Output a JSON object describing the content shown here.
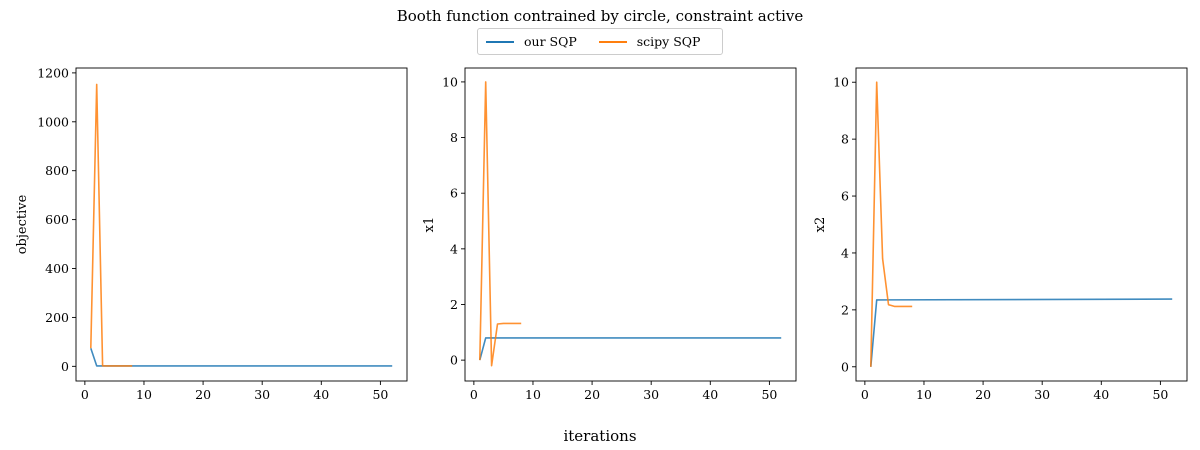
{
  "figure": {
    "title": "Booth function contrained by circle, constraint active",
    "xlabel": "iterations"
  },
  "legend": [
    {
      "name": "our SQP",
      "color": "#1f77b4"
    },
    {
      "name": "scipy SQP",
      "color": "#ff7f0e"
    }
  ],
  "chart_data": [
    {
      "type": "line",
      "title": "",
      "xlabel": "",
      "ylabel": "objective",
      "xlim": [
        -1.5,
        54.5
      ],
      "ylim": [
        -60,
        1220
      ],
      "xticks": [
        0,
        10,
        20,
        30,
        40,
        50
      ],
      "yticks": [
        0,
        200,
        400,
        600,
        800,
        1000,
        1200
      ],
      "grid": false,
      "series": [
        {
          "name": "our SQP",
          "color": "#1f77b4",
          "x": [
            1,
            2,
            52
          ],
          "y": [
            74,
            1.8,
            1.8
          ]
        },
        {
          "name": "scipy SQP",
          "color": "#ff7f0e",
          "x": [
            1,
            2,
            3,
            4,
            5,
            6,
            7,
            8
          ],
          "y": [
            74,
            1153,
            2,
            1.8,
            1.8,
            1.8,
            1.8,
            1.8
          ]
        }
      ]
    },
    {
      "type": "line",
      "title": "",
      "xlabel": "",
      "ylabel": "x1",
      "xlim": [
        -1.5,
        54.5
      ],
      "ylim": [
        -0.75,
        10.5
      ],
      "xticks": [
        0,
        10,
        20,
        30,
        40,
        50
      ],
      "yticks": [
        0,
        2,
        4,
        6,
        8,
        10
      ],
      "grid": false,
      "series": [
        {
          "name": "our SQP",
          "color": "#1f77b4",
          "x": [
            1,
            2,
            52
          ],
          "y": [
            0,
            0.8,
            0.8
          ]
        },
        {
          "name": "scipy SQP",
          "color": "#ff7f0e",
          "x": [
            1,
            2,
            3,
            4,
            5,
            6,
            7,
            8
          ],
          "y": [
            0,
            10,
            -0.2,
            1.3,
            1.32,
            1.32,
            1.32,
            1.32
          ]
        }
      ]
    },
    {
      "type": "line",
      "title": "",
      "xlabel": "",
      "ylabel": "x2",
      "xlim": [
        -1.5,
        54.5
      ],
      "ylim": [
        -0.5,
        10.5
      ],
      "xticks": [
        0,
        10,
        20,
        30,
        40,
        50
      ],
      "yticks": [
        0,
        2,
        4,
        6,
        8,
        10
      ],
      "grid": false,
      "series": [
        {
          "name": "our SQP",
          "color": "#1f77b4",
          "x": [
            1,
            2,
            52
          ],
          "y": [
            0,
            2.35,
            2.38
          ]
        },
        {
          "name": "scipy SQP",
          "color": "#ff7f0e",
          "x": [
            1,
            2,
            3,
            4,
            5,
            6,
            7,
            8
          ],
          "y": [
            0,
            10,
            3.8,
            2.18,
            2.12,
            2.12,
            2.12,
            2.12
          ]
        }
      ]
    }
  ]
}
